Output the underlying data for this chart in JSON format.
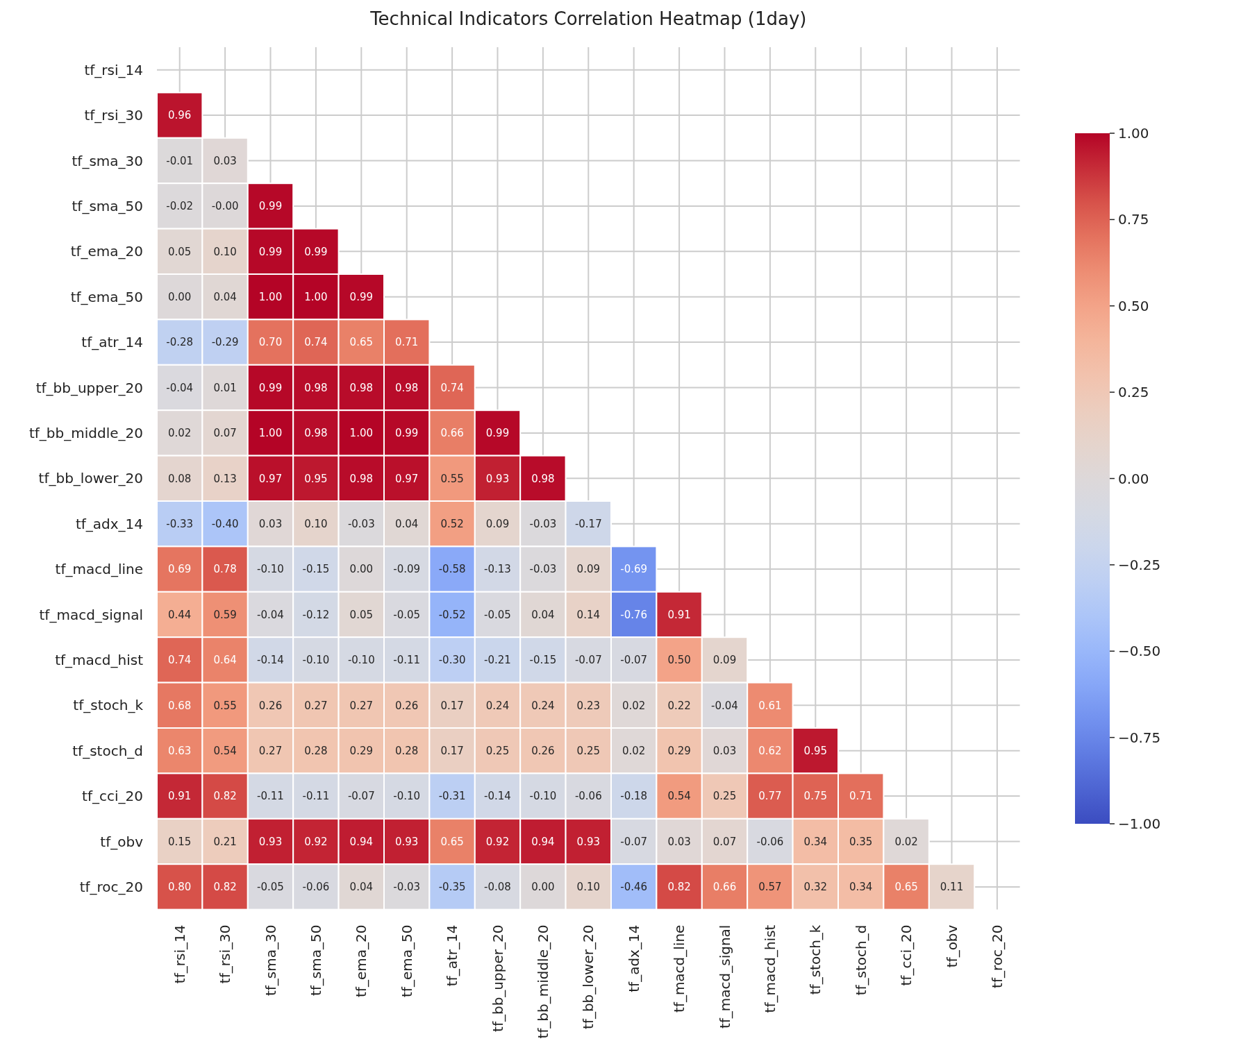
{
  "chart_data": {
    "type": "heatmap",
    "title": "Technical Indicators Correlation Heatmap (1day)",
    "categories": [
      "tf_rsi_14",
      "tf_rsi_30",
      "tf_sma_30",
      "tf_sma_50",
      "tf_ema_20",
      "tf_ema_50",
      "tf_atr_14",
      "tf_bb_upper_20",
      "tf_bb_middle_20",
      "tf_bb_lower_20",
      "tf_adx_14",
      "tf_macd_line",
      "tf_macd_signal",
      "tf_macd_hist",
      "tf_stoch_k",
      "tf_stoch_d",
      "tf_cci_20",
      "tf_obv",
      "tf_roc_20"
    ],
    "y_categories": [
      "tf_rsi_14",
      "tf_rsi_30",
      "tf_sma_30",
      "tf_sma_50",
      "tf_ema_20",
      "tf_ema_50",
      "tf_atr_14",
      "tf_bb_upper_20",
      "tf_bb_middle_20",
      "tf_bb_lower_20",
      "tf_adx_14",
      "tf_macd_line",
      "tf_macd_signal",
      "tf_macd_hist",
      "tf_stoch_k",
      "tf_stoch_d",
      "tf_cci_20",
      "tf_obv",
      "tf_roc_20"
    ],
    "cells": [
      [
        null,
        null,
        null,
        null,
        null,
        null,
        null,
        null,
        null,
        null,
        null,
        null,
        null,
        null,
        null,
        null,
        null,
        null,
        null
      ],
      [
        0.96,
        null,
        null,
        null,
        null,
        null,
        null,
        null,
        null,
        null,
        null,
        null,
        null,
        null,
        null,
        null,
        null,
        null,
        null
      ],
      [
        -0.01,
        0.03,
        null,
        null,
        null,
        null,
        null,
        null,
        null,
        null,
        null,
        null,
        null,
        null,
        null,
        null,
        null,
        null,
        null
      ],
      [
        -0.02,
        -0.0,
        0.99,
        null,
        null,
        null,
        null,
        null,
        null,
        null,
        null,
        null,
        null,
        null,
        null,
        null,
        null,
        null,
        null
      ],
      [
        0.05,
        0.1,
        0.99,
        0.99,
        null,
        null,
        null,
        null,
        null,
        null,
        null,
        null,
        null,
        null,
        null,
        null,
        null,
        null,
        null
      ],
      [
        0.0,
        0.04,
        1.0,
        1.0,
        0.99,
        null,
        null,
        null,
        null,
        null,
        null,
        null,
        null,
        null,
        null,
        null,
        null,
        null,
        null
      ],
      [
        -0.28,
        -0.29,
        0.7,
        0.74,
        0.65,
        0.71,
        null,
        null,
        null,
        null,
        null,
        null,
        null,
        null,
        null,
        null,
        null,
        null,
        null
      ],
      [
        -0.04,
        0.01,
        0.99,
        0.98,
        0.98,
        0.98,
        0.74,
        null,
        null,
        null,
        null,
        null,
        null,
        null,
        null,
        null,
        null,
        null,
        null
      ],
      [
        0.02,
        0.07,
        1.0,
        0.98,
        1.0,
        0.99,
        0.66,
        0.99,
        null,
        null,
        null,
        null,
        null,
        null,
        null,
        null,
        null,
        null,
        null
      ],
      [
        0.08,
        0.13,
        0.97,
        0.95,
        0.98,
        0.97,
        0.55,
        0.93,
        0.98,
        null,
        null,
        null,
        null,
        null,
        null,
        null,
        null,
        null,
        null
      ],
      [
        -0.33,
        -0.4,
        0.03,
        0.1,
        -0.03,
        0.04,
        0.52,
        0.09,
        -0.03,
        -0.17,
        null,
        null,
        null,
        null,
        null,
        null,
        null,
        null,
        null
      ],
      [
        0.69,
        0.78,
        -0.1,
        -0.15,
        0.0,
        -0.09,
        -0.58,
        -0.13,
        -0.03,
        0.09,
        -0.69,
        null,
        null,
        null,
        null,
        null,
        null,
        null,
        null
      ],
      [
        0.44,
        0.59,
        -0.04,
        -0.12,
        0.05,
        -0.05,
        -0.52,
        -0.05,
        0.04,
        0.14,
        -0.76,
        0.91,
        null,
        null,
        null,
        null,
        null,
        null,
        null
      ],
      [
        0.74,
        0.64,
        -0.14,
        -0.1,
        -0.1,
        -0.11,
        -0.3,
        -0.21,
        -0.15,
        -0.07,
        -0.07,
        0.5,
        0.09,
        null,
        null,
        null,
        null,
        null,
        null
      ],
      [
        0.68,
        0.55,
        0.26,
        0.27,
        0.27,
        0.26,
        0.17,
        0.24,
        0.24,
        0.23,
        0.02,
        0.22,
        -0.04,
        0.61,
        null,
        null,
        null,
        null,
        null
      ],
      [
        0.63,
        0.54,
        0.27,
        0.28,
        0.29,
        0.28,
        0.17,
        0.25,
        0.26,
        0.25,
        0.02,
        0.29,
        0.03,
        0.62,
        0.95,
        null,
        null,
        null,
        null
      ],
      [
        0.91,
        0.82,
        -0.11,
        -0.11,
        -0.07,
        -0.1,
        -0.31,
        -0.14,
        -0.1,
        -0.06,
        -0.18,
        0.54,
        0.25,
        0.77,
        0.75,
        0.71,
        null,
        null,
        null
      ],
      [
        0.15,
        0.21,
        0.93,
        0.92,
        0.94,
        0.93,
        0.65,
        0.92,
        0.94,
        0.93,
        -0.07,
        0.03,
        0.07,
        -0.06,
        0.34,
        0.35,
        0.02,
        null,
        null
      ],
      [
        0.8,
        0.82,
        -0.05,
        -0.06,
        0.04,
        -0.03,
        -0.35,
        -0.08,
        0.0,
        0.1,
        -0.46,
        0.82,
        0.66,
        0.57,
        0.32,
        0.34,
        0.65,
        0.11,
        null
      ]
    ],
    "clim": [
      -1,
      1
    ],
    "cticks": [
      {
        "value": -1,
        "label": "−1.00"
      },
      {
        "value": -0.75,
        "label": "−0.75"
      },
      {
        "value": -0.5,
        "label": "−0.50"
      },
      {
        "value": -0.25,
        "label": "−0.25"
      },
      {
        "value": 0,
        "label": "0.00"
      },
      {
        "value": 0.25,
        "label": "0.25"
      },
      {
        "value": 0.5,
        "label": "0.50"
      },
      {
        "value": 0.75,
        "label": "0.75"
      },
      {
        "value": 1,
        "label": "1.00"
      }
    ],
    "cell_labels": [
      [
        null,
        null,
        null,
        null,
        null,
        null,
        null,
        null,
        null,
        null,
        null,
        null,
        null,
        null,
        null,
        null,
        null,
        null,
        null
      ],
      [
        "0.96",
        null,
        null,
        null,
        null,
        null,
        null,
        null,
        null,
        null,
        null,
        null,
        null,
        null,
        null,
        null,
        null,
        null,
        null
      ],
      [
        "-0.01",
        "0.03",
        null,
        null,
        null,
        null,
        null,
        null,
        null,
        null,
        null,
        null,
        null,
        null,
        null,
        null,
        null,
        null,
        null
      ],
      [
        "-0.02",
        "-0.00",
        "0.99",
        null,
        null,
        null,
        null,
        null,
        null,
        null,
        null,
        null,
        null,
        null,
        null,
        null,
        null,
        null,
        null
      ],
      [
        "0.05",
        "0.10",
        "0.99",
        "0.99",
        null,
        null,
        null,
        null,
        null,
        null,
        null,
        null,
        null,
        null,
        null,
        null,
        null,
        null,
        null
      ],
      [
        "0.00",
        "0.04",
        "1.00",
        "1.00",
        "0.99",
        null,
        null,
        null,
        null,
        null,
        null,
        null,
        null,
        null,
        null,
        null,
        null,
        null,
        null
      ],
      [
        "-0.28",
        "-0.29",
        "0.70",
        "0.74",
        "0.65",
        "0.71",
        null,
        null,
        null,
        null,
        null,
        null,
        null,
        null,
        null,
        null,
        null,
        null,
        null
      ],
      [
        "-0.04",
        "0.01",
        "0.99",
        "0.98",
        "0.98",
        "0.98",
        "0.74",
        null,
        null,
        null,
        null,
        null,
        null,
        null,
        null,
        null,
        null,
        null,
        null
      ],
      [
        "0.02",
        "0.07",
        "1.00",
        "0.98",
        "1.00",
        "0.99",
        "0.66",
        "0.99",
        null,
        null,
        null,
        null,
        null,
        null,
        null,
        null,
        null,
        null,
        null
      ],
      [
        "0.08",
        "0.13",
        "0.97",
        "0.95",
        "0.98",
        "0.97",
        "0.55",
        "0.93",
        "0.98",
        null,
        null,
        null,
        null,
        null,
        null,
        null,
        null,
        null,
        null
      ],
      [
        "-0.33",
        "-0.40",
        "0.03",
        "0.10",
        "-0.03",
        "0.04",
        "0.52",
        "0.09",
        "-0.03",
        "-0.17",
        null,
        null,
        null,
        null,
        null,
        null,
        null,
        null,
        null
      ],
      [
        "0.69",
        "0.78",
        "-0.10",
        "-0.15",
        "0.00",
        "-0.09",
        "-0.58",
        "-0.13",
        "-0.03",
        "0.09",
        "-0.69",
        null,
        null,
        null,
        null,
        null,
        null,
        null,
        null
      ],
      [
        "0.44",
        "0.59",
        "-0.04",
        "-0.12",
        "0.05",
        "-0.05",
        "-0.52",
        "-0.05",
        "0.04",
        "0.14",
        "-0.76",
        "0.91",
        null,
        null,
        null,
        null,
        null,
        null,
        null
      ],
      [
        "0.74",
        "0.64",
        "-0.14",
        "-0.10",
        "-0.10",
        "-0.11",
        "-0.30",
        "-0.21",
        "-0.15",
        "-0.07",
        "-0.07",
        "0.50",
        "0.09",
        null,
        null,
        null,
        null,
        null,
        null
      ],
      [
        "0.68",
        "0.55",
        "0.26",
        "0.27",
        "0.27",
        "0.26",
        "0.17",
        "0.24",
        "0.24",
        "0.23",
        "0.02",
        "0.22",
        "-0.04",
        "0.61",
        null,
        null,
        null,
        null,
        null
      ],
      [
        "0.63",
        "0.54",
        "0.27",
        "0.28",
        "0.29",
        "0.28",
        "0.17",
        "0.25",
        "0.26",
        "0.25",
        "0.02",
        "0.29",
        "0.03",
        "0.62",
        "0.95",
        null,
        null,
        null,
        null
      ],
      [
        "0.91",
        "0.82",
        "-0.11",
        "-0.11",
        "-0.07",
        "-0.10",
        "-0.31",
        "-0.14",
        "-0.10",
        "-0.06",
        "-0.18",
        "0.54",
        "0.25",
        "0.77",
        "0.75",
        "0.71",
        null,
        null,
        null
      ],
      [
        "0.15",
        "0.21",
        "0.93",
        "0.92",
        "0.94",
        "0.93",
        "0.65",
        "0.92",
        "0.94",
        "0.93",
        "-0.07",
        "0.03",
        "0.07",
        "-0.06",
        "0.34",
        "0.35",
        "0.02",
        null,
        null
      ],
      [
        "0.80",
        "0.82",
        "-0.05",
        "-0.06",
        "0.04",
        "-0.03",
        "-0.35",
        "-0.08",
        "0.00",
        "0.10",
        "-0.46",
        "0.82",
        "0.66",
        "0.57",
        "0.32",
        "0.34",
        "0.65",
        "0.11",
        null
      ]
    ],
    "grid": true
  }
}
